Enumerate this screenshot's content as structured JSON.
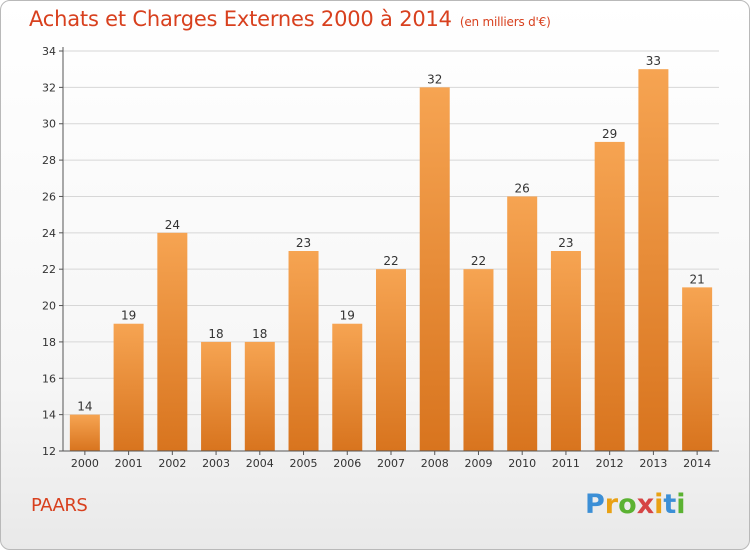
{
  "title": "Achats et Charges Externes 2000 à 2014",
  "subtitle": "(en milliers d'€)",
  "commune": "PAARS",
  "logo": {
    "text": "Proxiti",
    "colors": [
      "#3c8fd6",
      "#e9a114",
      "#5bb232",
      "#d64545",
      "#e9a114",
      "#3c8fd6",
      "#5bb232"
    ]
  },
  "colors": {
    "accent": "#d8401e",
    "bar_top": "#f6a452",
    "bar_bottom": "#d8741e",
    "gridline": "#d7d7d7"
  },
  "chart_data": {
    "type": "bar",
    "categories": [
      "2000",
      "2001",
      "2002",
      "2003",
      "2004",
      "2005",
      "2006",
      "2007",
      "2008",
      "2009",
      "2010",
      "2011",
      "2012",
      "2013",
      "2014"
    ],
    "values": [
      14,
      19,
      24,
      18,
      18,
      23,
      19,
      22,
      32,
      22,
      26,
      23,
      29,
      33,
      21
    ],
    "ylim": [
      12,
      34
    ],
    "yticks": [
      12,
      14,
      16,
      18,
      20,
      22,
      24,
      26,
      28,
      30,
      32,
      34
    ],
    "grid": true,
    "legend": "none"
  }
}
